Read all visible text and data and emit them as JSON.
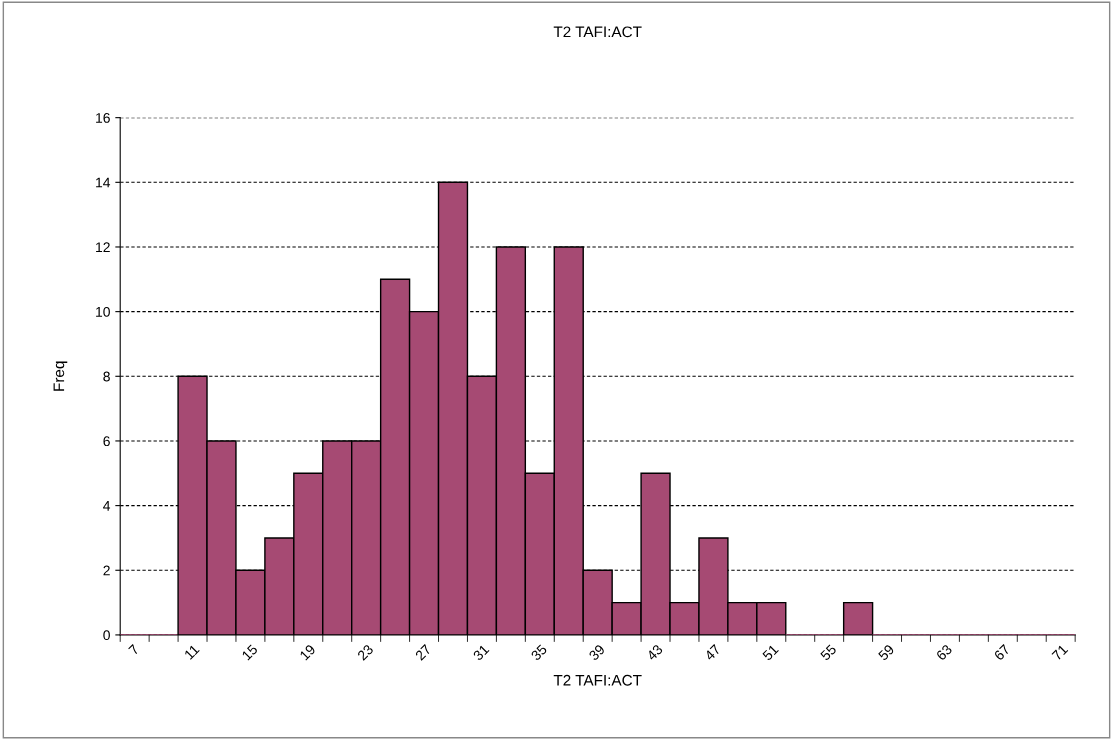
{
  "chart_data": {
    "type": "bar",
    "title": "T2 TAFI:ACT",
    "xlabel": "T2 TAFI:ACT",
    "ylabel": "Freq",
    "categories": [
      "7",
      null,
      "11",
      null,
      "15",
      null,
      "19",
      null,
      "23",
      null,
      "27",
      null,
      "31",
      null,
      "35",
      null,
      "39",
      null,
      "43",
      null,
      "47",
      null,
      "51",
      null,
      "55",
      null,
      "59",
      null,
      "63",
      null,
      "67",
      null,
      "71"
    ],
    "values": [
      0,
      0,
      8,
      6,
      2,
      3,
      5,
      6,
      6,
      11,
      10,
      14,
      8,
      12,
      5,
      12,
      2,
      1,
      5,
      1,
      3,
      1,
      1,
      0,
      0,
      1,
      0,
      0,
      0,
      0,
      0,
      0,
      0
    ],
    "color": "#a64a73",
    "ylim": [
      0,
      16
    ],
    "yticks": [
      0,
      2,
      4,
      6,
      8,
      10,
      12,
      14,
      16
    ],
    "grid": "y",
    "legend": false
  }
}
